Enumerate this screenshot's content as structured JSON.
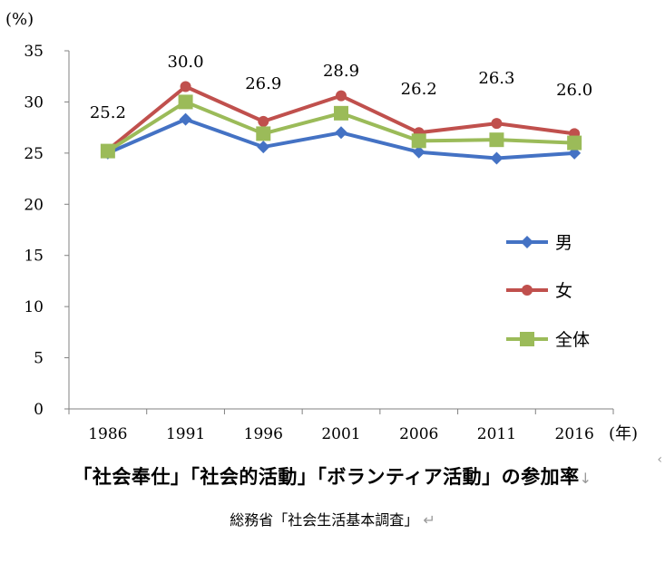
{
  "chart_data": {
    "type": "line",
    "title": "「社会奉仕」「社会的活動」「ボランティア活動」の参加率",
    "title_mark": "↓",
    "source": "総務省「社会生活基本調査」",
    "source_mark": "↵",
    "edge_mark": "‹",
    "ylabel": "(%)",
    "xlabel": "(年)",
    "categories": [
      "1986",
      "1991",
      "1996",
      "2001",
      "2006",
      "2011",
      "2016"
    ],
    "ylim": [
      0,
      35
    ],
    "yticks": [
      "0",
      "5",
      "10",
      "15",
      "20",
      "25",
      "30",
      "35"
    ],
    "grid": false,
    "legend_position": "right",
    "series": [
      {
        "name": "男",
        "color": "#4472C4",
        "marker": "diamond",
        "values": [
          25.0,
          28.3,
          25.6,
          27.0,
          25.1,
          24.5,
          25.0
        ]
      },
      {
        "name": "女",
        "color": "#C0504D",
        "marker": "circle",
        "values": [
          25.3,
          31.5,
          28.1,
          30.6,
          27.0,
          27.9,
          26.9
        ]
      },
      {
        "name": "全体",
        "color": "#9BBB59",
        "marker": "square",
        "values": [
          25.2,
          30.0,
          26.9,
          28.9,
          26.2,
          26.3,
          26.0
        ],
        "labels": [
          "25.2",
          "30.0",
          "26.9",
          "28.9",
          "26.2",
          "26.3",
          "26.0"
        ]
      }
    ]
  }
}
